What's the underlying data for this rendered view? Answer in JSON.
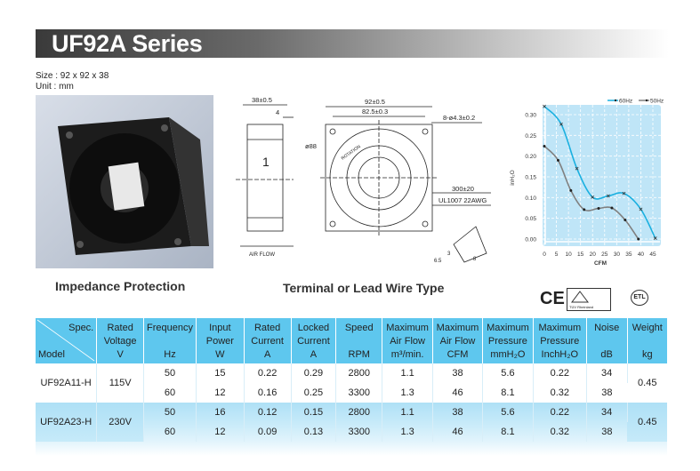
{
  "header": {
    "title": "UF92A Series"
  },
  "meta": {
    "size": "Size : 92 x 92 x 38",
    "unit": "Unit : mm"
  },
  "captions": {
    "photo": "Impedance Protection",
    "drawing": "Terminal or Lead Wire Type"
  },
  "drawing": {
    "depth": "38±0.5",
    "flange": "4",
    "width": "92±0.5",
    "hole_spacing": "82.5±0.3",
    "holes": "8-ø4.3±0.2",
    "diameter": "ø88",
    "rotation": "ROTATION",
    "lead_length": "300±20",
    "lead_spec": "UL1007 22AWG",
    "airflow": "AIR FLOW",
    "side_mark": "1",
    "term_dims": [
      "6.5",
      "3",
      "8"
    ]
  },
  "certifications": [
    "CE",
    "TÜV Rheinland",
    "ETL"
  ],
  "chart_data": {
    "type": "line",
    "xlabel": "CFM",
    "ylabel": "inH₂O",
    "xlim": [
      0,
      47
    ],
    "ylim": [
      0,
      0.32
    ],
    "xticks": [
      0,
      5,
      10,
      15,
      20,
      25,
      30,
      35,
      40,
      45
    ],
    "yticks": [
      "0.00",
      "0.05",
      "0.10",
      "0.15",
      "0.20",
      "0.25",
      "0.30"
    ],
    "grid": true,
    "legend": "top-right",
    "background": "#bfe5f7",
    "series": [
      {
        "name": "60Hz",
        "color": "#1ab0e0",
        "marker": "x",
        "x": [
          0,
          7,
          13.5,
          20,
          26.5,
          33,
          40,
          46
        ],
        "y": [
          0.32,
          0.277,
          0.17,
          0.101,
          0.104,
          0.11,
          0.072,
          0.002
        ]
      },
      {
        "name": "50Hz",
        "color": "#808080",
        "marker": "dot",
        "x": [
          0,
          5.7,
          11,
          16.5,
          22.5,
          28,
          33.5,
          39
        ],
        "y": [
          0.224,
          0.19,
          0.117,
          0.071,
          0.074,
          0.075,
          0.046,
          0.0
        ]
      }
    ]
  },
  "table": {
    "spec_label": "Spec.",
    "model_label": "Model",
    "headers": [
      [
        "Rated",
        "Voltage",
        "V"
      ],
      [
        "Frequency",
        "",
        "Hz"
      ],
      [
        "Input",
        "Power",
        "W"
      ],
      [
        "Rated",
        "Current",
        "A"
      ],
      [
        "Locked",
        "Current",
        "A"
      ],
      [
        "Speed",
        "",
        "RPM"
      ],
      [
        "Maximum",
        "Air Flow",
        "m³/min."
      ],
      [
        "Maximum",
        "Air Flow",
        "CFM"
      ],
      [
        "Maximum",
        "Pressure",
        "mmH₂O"
      ],
      [
        "Maximum",
        "Pressure",
        "InchH₂O"
      ],
      [
        "Noise",
        "",
        "dB"
      ],
      [
        "Weight",
        "",
        "kg"
      ]
    ],
    "models": [
      {
        "model": "UF92A11-H",
        "voltage": "115V",
        "weight": "0.45",
        "rows": [
          [
            "50",
            "15",
            "0.22",
            "0.29",
            "2800",
            "1.1",
            "38",
            "5.6",
            "0.22",
            "34"
          ],
          [
            "60",
            "12",
            "0.16",
            "0.25",
            "3300",
            "1.3",
            "46",
            "8.1",
            "0.32",
            "38"
          ]
        ]
      },
      {
        "model": "UF92A23-H",
        "voltage": "230V",
        "weight": "0.45",
        "rows": [
          [
            "50",
            "16",
            "0.12",
            "0.15",
            "2800",
            "1.1",
            "38",
            "5.6",
            "0.22",
            "34"
          ],
          [
            "60",
            "12",
            "0.09",
            "0.13",
            "3300",
            "1.3",
            "46",
            "8.1",
            "0.32",
            "38"
          ]
        ]
      }
    ]
  }
}
